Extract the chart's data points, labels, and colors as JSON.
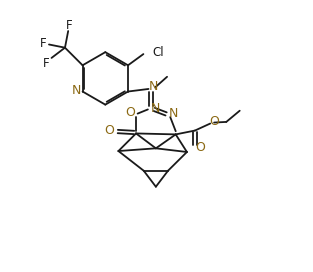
{
  "bg_color": "#ffffff",
  "line_color": "#1a1a1a",
  "n_color": "#8B6914",
  "o_color": "#8B6914",
  "lw": 1.3,
  "figsize": [
    3.13,
    2.72
  ],
  "dpi": 100,
  "xlim": [
    0,
    9.5
  ],
  "ylim": [
    0,
    8.5
  ]
}
